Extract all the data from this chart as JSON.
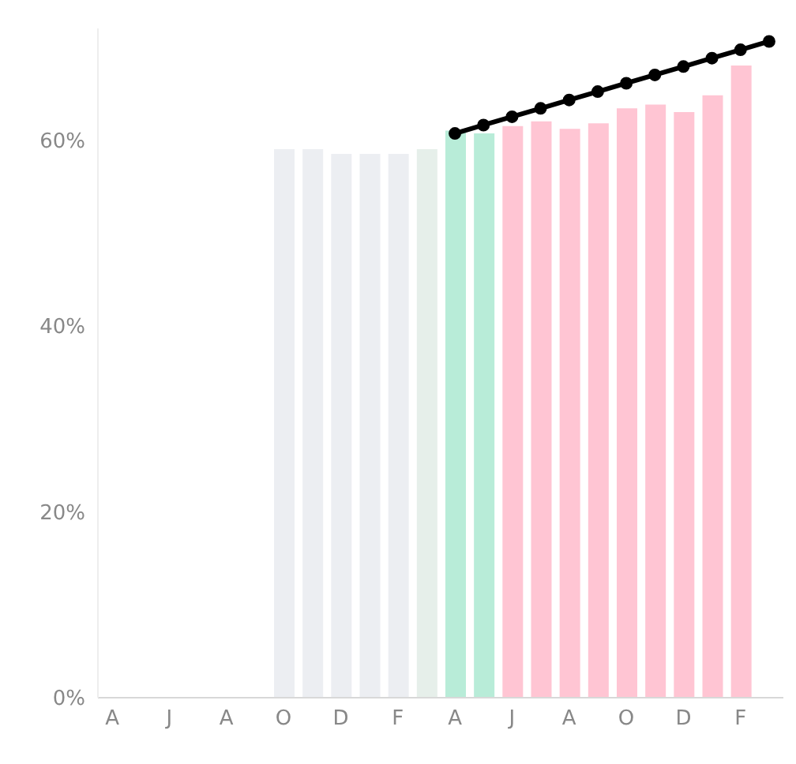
{
  "chart_data": {
    "type": "bar",
    "categories": [
      "A",
      null,
      "J",
      null,
      "A",
      null,
      "O",
      null,
      "D",
      null,
      "F",
      null,
      "A",
      null,
      "J",
      null,
      "A",
      null,
      "O",
      null,
      "D",
      null,
      "F",
      null
    ],
    "series": [
      {
        "values": [
          null,
          null,
          null,
          null,
          null,
          null,
          59,
          59,
          58.5,
          58.5,
          58.5,
          59,
          61,
          60.7,
          61.5,
          62,
          61.2,
          61.8,
          63.4,
          63.8,
          63,
          64.8,
          68,
          null
        ],
        "colors": [
          "#eceef2",
          "#eceef2",
          "#eceef2",
          "#eceef2",
          "#eceef2",
          "#eceef2",
          "#eceef2",
          "#eceef2",
          "#eceef2",
          "#eceef2",
          "#eceef2",
          "#e6efea",
          "#b8ecd8",
          "#b8ecd8",
          "#ffc5d3",
          "#ffc5d3",
          "#ffc5d3",
          "#ffc5d3",
          "#ffc5d3",
          "#ffc5d3",
          "#ffc5d3",
          "#ffc5d3",
          "#ffc5d3",
          "#ffc5d3"
        ]
      },
      {
        "type": "line",
        "color": "#000000",
        "values": [
          null,
          null,
          null,
          null,
          null,
          null,
          null,
          null,
          null,
          null,
          null,
          null,
          60.7,
          61.6,
          62.5,
          63.4,
          64.3,
          65.2,
          66.1,
          67,
          67.9,
          68.8,
          69.7,
          70.6
        ],
        "marker": "circle"
      }
    ],
    "ylim": [
      0,
      72
    ],
    "yticks": [
      {
        "value": 0,
        "label": "0%"
      },
      {
        "value": 20,
        "label": "20%"
      },
      {
        "value": 40,
        "label": "40%"
      },
      {
        "value": 60,
        "label": "60%"
      }
    ],
    "grid": false,
    "legend": false
  }
}
